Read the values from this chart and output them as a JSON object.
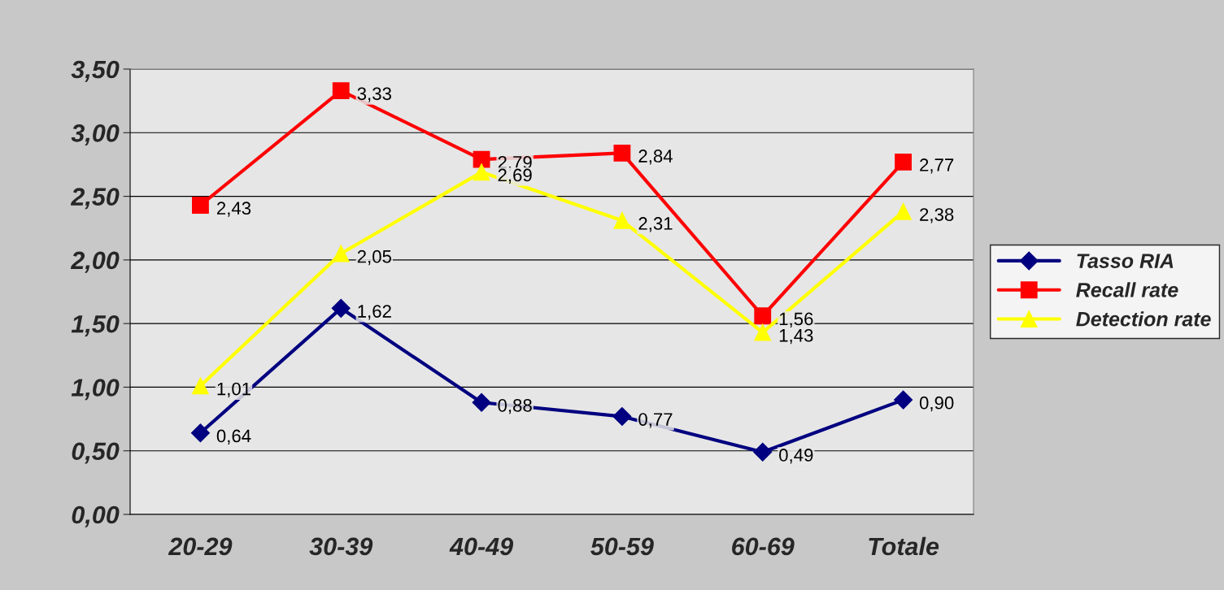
{
  "chart_data": {
    "type": "line",
    "categories": [
      "20-29",
      "30-39",
      "40-49",
      "50-59",
      "60-69",
      "Totale"
    ],
    "series": [
      {
        "name": "Tasso RIA",
        "color": "#000080",
        "marker": "diamond",
        "values": [
          0.64,
          1.62,
          0.88,
          0.77,
          0.49,
          0.9
        ],
        "value_labels": [
          "0,64",
          "1,62",
          "0,88",
          "0,77",
          "0,49",
          "0,90"
        ]
      },
      {
        "name": "Recall rate",
        "color": "#ff0000",
        "marker": "square",
        "values": [
          2.43,
          3.33,
          2.79,
          2.84,
          1.56,
          2.77
        ],
        "value_labels": [
          "2,43",
          "3,33",
          "2,79",
          "2,84",
          "1,56",
          "2,77"
        ]
      },
      {
        "name": "Detection rate",
        "color": "#ffff00",
        "marker": "triangle",
        "values": [
          1.01,
          2.05,
          2.69,
          2.31,
          1.43,
          2.38
        ],
        "value_labels": [
          "1,01",
          "2,05",
          "2,69",
          "2,31",
          "1,43",
          "2,38"
        ]
      }
    ],
    "ylim": [
      0,
      3.5
    ],
    "yticks": [
      {
        "value": 0,
        "label": "0,00"
      },
      {
        "value": 0.5,
        "label": "0,50"
      },
      {
        "value": 1,
        "label": "1,00"
      },
      {
        "value": 1.5,
        "label": "1,50"
      },
      {
        "value": 2,
        "label": "2,00"
      },
      {
        "value": 2.5,
        "label": "2,50"
      },
      {
        "value": 3,
        "label": "3,00"
      },
      {
        "value": 3.5,
        "label": "3,50"
      }
    ],
    "grid": "y",
    "legend": "right",
    "line_style": "solid"
  }
}
